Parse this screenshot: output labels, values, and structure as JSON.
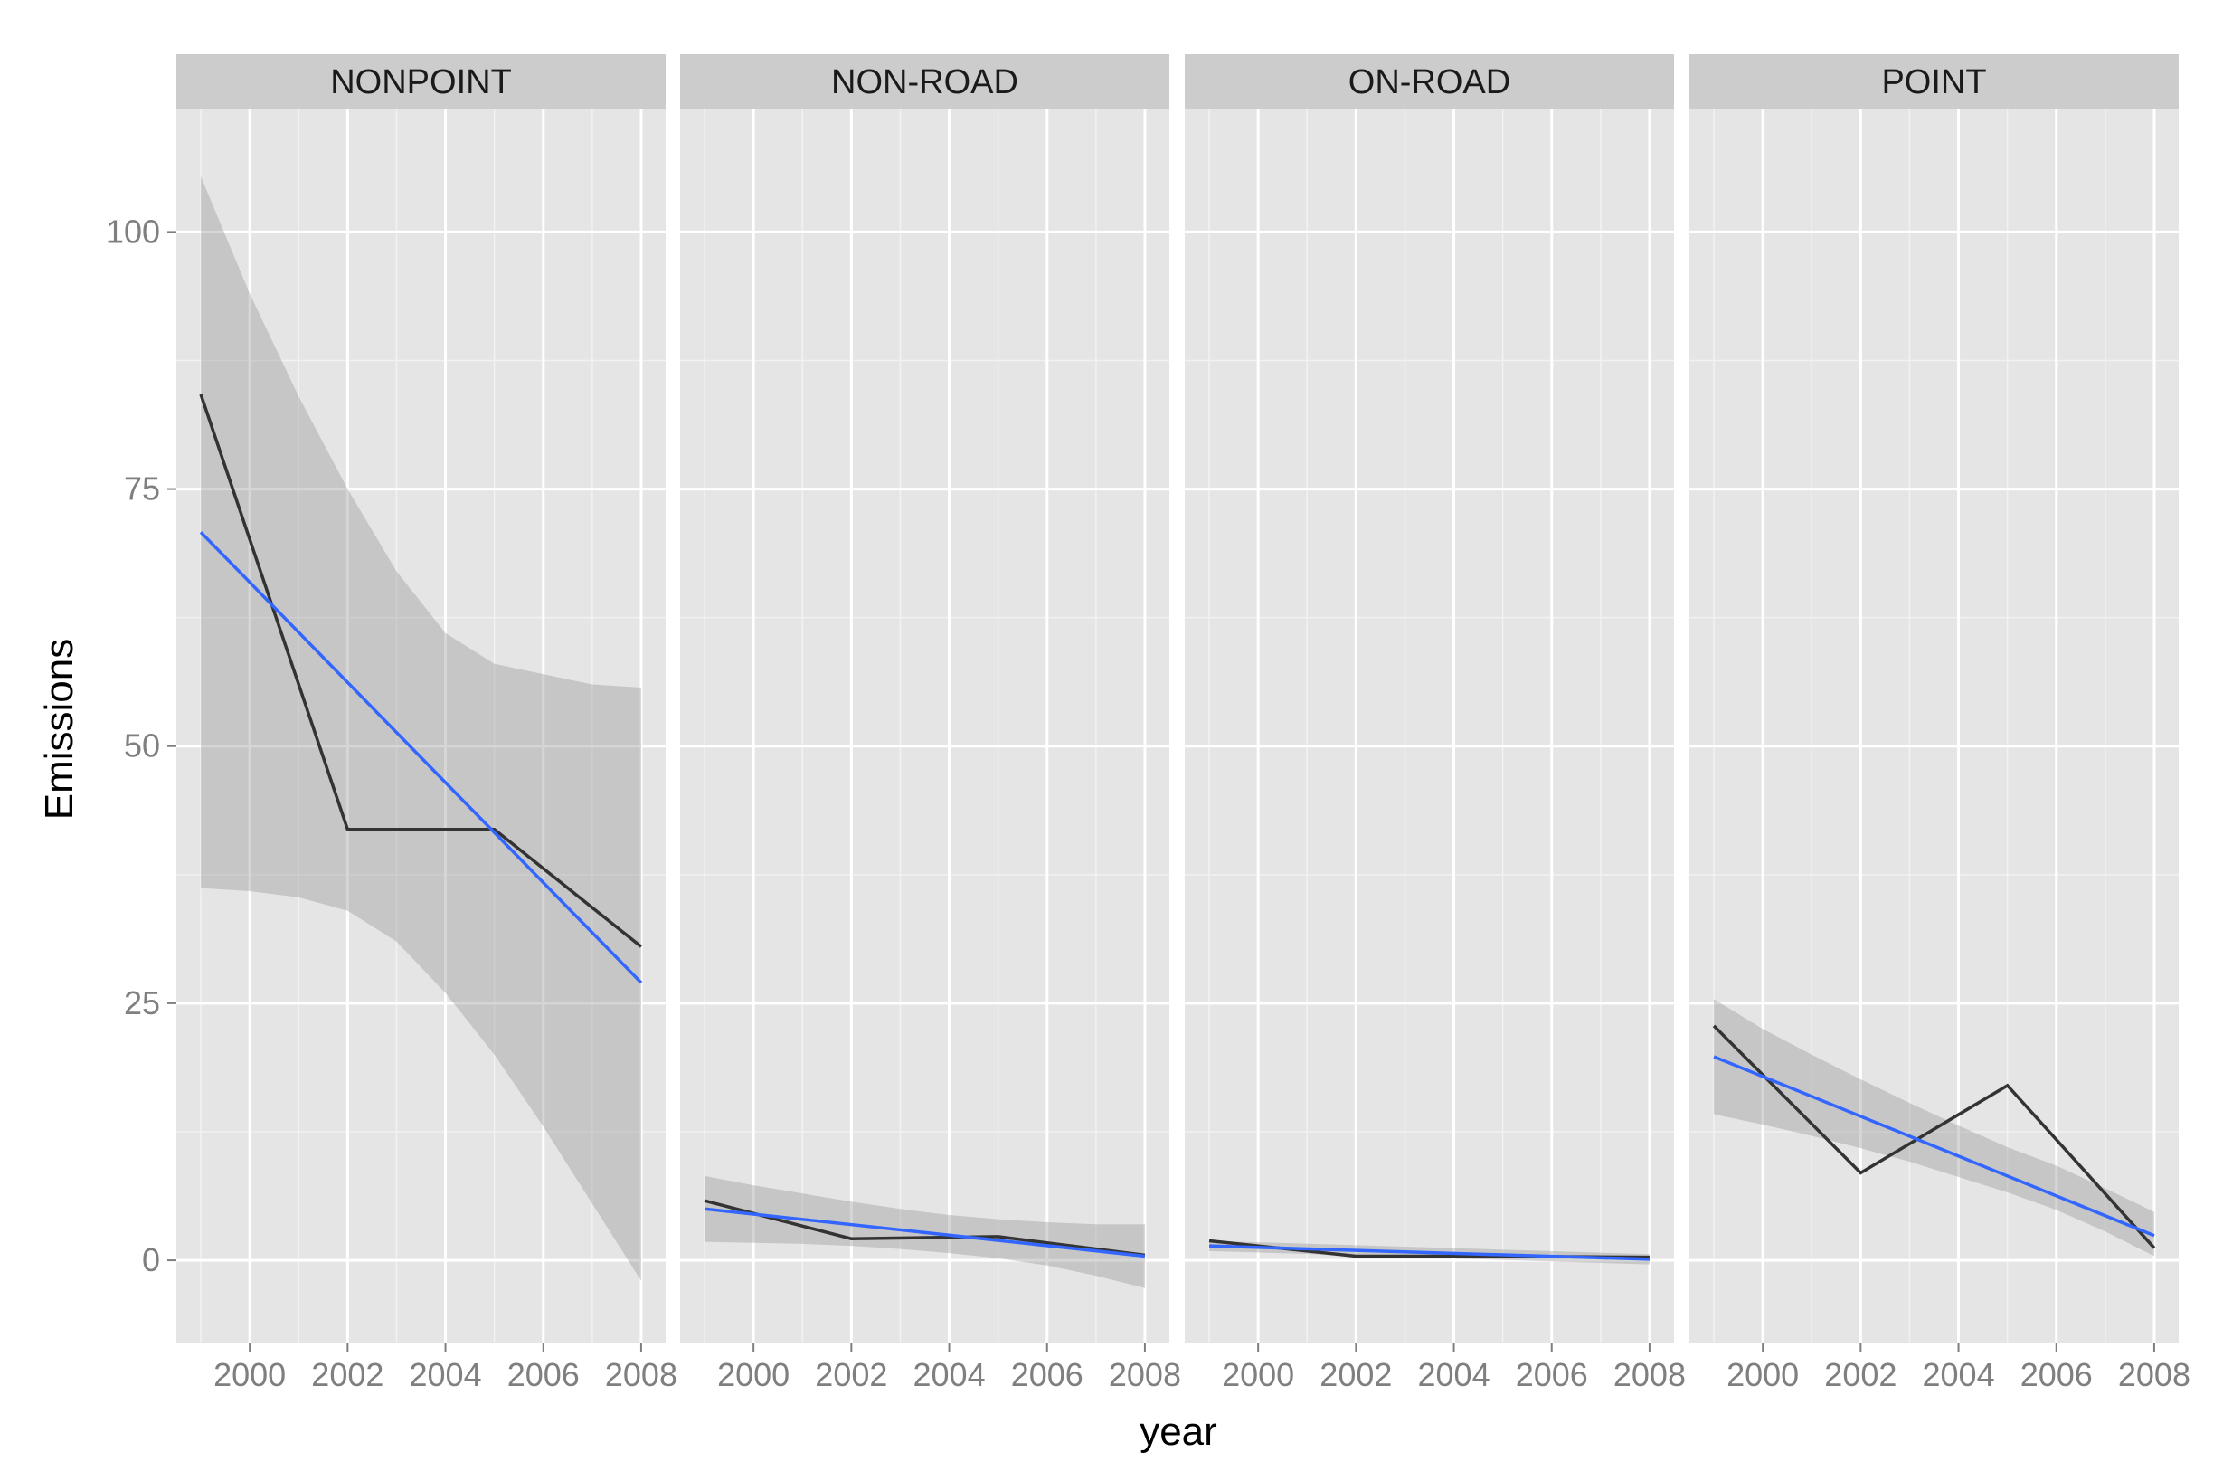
{
  "chart_data": {
    "type": "line",
    "xlabel": "year",
    "ylabel": "Emissions",
    "xlim": [
      1998.5,
      2008.5
    ],
    "ylim": [
      -8,
      112
    ],
    "xticks": [
      2000,
      2002,
      2004,
      2006,
      2008
    ],
    "xtick_labels": [
      "2000",
      "2002",
      "2004",
      "2006",
      "2008"
    ],
    "yticks": [
      0,
      25,
      50,
      75,
      100
    ],
    "ytick_labels": [
      "0",
      "25",
      "50",
      "75",
      "100"
    ],
    "grid": true,
    "colors": {
      "panel_bg": "#e5e5e5",
      "strip_bg": "#cccccc",
      "grid": "#ffffff",
      "data_line": "#333333",
      "fit_line": "#3366ff",
      "ribbon": "#999999"
    },
    "facets": [
      {
        "label": "NONPOINT",
        "x": [
          1999,
          2002,
          2005,
          2008
        ],
        "values": [
          84.2,
          41.9,
          41.9,
          30.5
        ],
        "fit": {
          "x": [
            1999,
            2008
          ],
          "values": [
            70.8,
            27.0
          ]
        },
        "ribbon": {
          "x": [
            1999,
            2000,
            2001,
            2002,
            2003,
            2004,
            2005,
            2006,
            2007,
            2008
          ],
          "lower": [
            36.2,
            35.9,
            35.3,
            34.0,
            31.0,
            26.0,
            20.0,
            13.0,
            5.5,
            -2.0
          ],
          "upper": [
            105.4,
            94.0,
            84.0,
            75.0,
            67.0,
            61.0,
            58.0,
            57.0,
            56.0,
            55.7
          ]
        }
      },
      {
        "label": "NON-ROAD",
        "x": [
          1999,
          2002,
          2005,
          2008
        ],
        "values": [
          5.8,
          2.1,
          2.3,
          0.5
        ],
        "fit": {
          "x": [
            1999,
            2008
          ],
          "values": [
            5.0,
            0.4
          ]
        },
        "ribbon": {
          "x": [
            1999,
            2000,
            2001,
            2002,
            2003,
            2004,
            2005,
            2006,
            2007,
            2008
          ],
          "lower": [
            1.8,
            1.7,
            1.6,
            1.4,
            1.1,
            0.7,
            0.2,
            -0.5,
            -1.5,
            -2.7
          ],
          "upper": [
            8.2,
            7.3,
            6.5,
            5.7,
            5.0,
            4.4,
            4.0,
            3.7,
            3.5,
            3.5
          ]
        }
      },
      {
        "label": "ON-ROAD",
        "x": [
          1999,
          2002,
          2005,
          2008
        ],
        "values": [
          1.9,
          0.4,
          0.4,
          0.3
        ],
        "fit": {
          "x": [
            1999,
            2008
          ],
          "values": [
            1.4,
            0.1
          ]
        },
        "ribbon": {
          "x": [
            1999,
            2008
          ],
          "lower": [
            0.9,
            -0.4
          ],
          "upper": [
            1.9,
            0.6
          ]
        }
      },
      {
        "label": "POINT",
        "x": [
          1999,
          2002,
          2005,
          2008
        ],
        "values": [
          22.8,
          8.5,
          17.0,
          1.2
        ],
        "fit": {
          "x": [
            1999,
            2008
          ],
          "values": [
            19.8,
            2.4
          ]
        },
        "ribbon": {
          "x": [
            1999,
            2000,
            2001,
            2002,
            2003,
            2004,
            2005,
            2006,
            2007,
            2008
          ],
          "lower": [
            14.2,
            13.2,
            12.1,
            10.9,
            9.6,
            8.1,
            6.6,
            4.9,
            2.8,
            0.4
          ],
          "upper": [
            25.4,
            22.5,
            20.0,
            17.6,
            15.3,
            13.1,
            11.0,
            9.2,
            7.0,
            4.7
          ]
        }
      }
    ]
  }
}
